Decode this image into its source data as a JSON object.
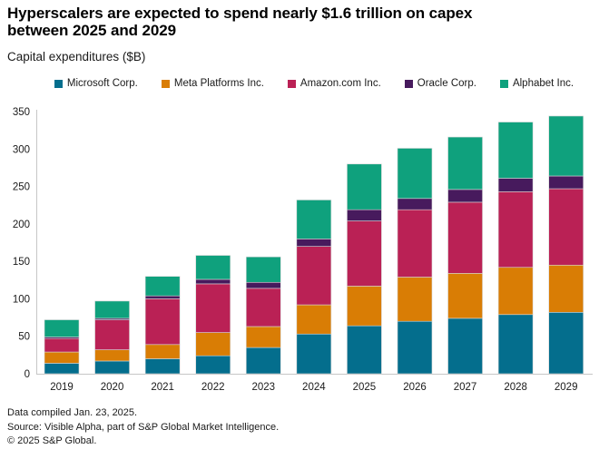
{
  "header": {
    "title": "Hyperscalers are expected to spend nearly $1.6 trillion on capex between 2025 and 2029",
    "title_lines": [
      "Hyperscalers are expected to spend nearly $1.6 trillion on capex",
      "between 2025 and 2029"
    ],
    "subtitle": "Capital expenditures ($B)"
  },
  "chart_data": {
    "type": "bar",
    "stacked": true,
    "title": "Hyperscalers are expected to spend nearly $1.6 trillion on capex between 2025 and 2029",
    "ylabel": "Capital expenditures ($B)",
    "xlabel": "",
    "ylim": [
      0,
      350
    ],
    "yticks": [
      0,
      50,
      100,
      150,
      200,
      250,
      300,
      350
    ],
    "grid": false,
    "legend_position": "top",
    "categories": [
      "2019",
      "2020",
      "2021",
      "2022",
      "2023",
      "2024",
      "2025",
      "2026",
      "2027",
      "2028",
      "2029"
    ],
    "series": [
      {
        "name": "Microsoft Corp.",
        "color": "#046e8d",
        "values": [
          14,
          17,
          20,
          24,
          35,
          53,
          64,
          70,
          74,
          79,
          82
        ]
      },
      {
        "name": "Meta Platforms Inc.",
        "color": "#d97d05",
        "values": [
          15,
          15,
          19,
          31,
          28,
          39,
          53,
          59,
          60,
          63,
          63
        ]
      },
      {
        "name": "Amazon.com Inc.",
        "color": "#ba2155",
        "values": [
          18,
          40,
          61,
          65,
          51,
          78,
          87,
          90,
          95,
          101,
          102
        ]
      },
      {
        "name": "Oracle Corp.",
        "color": "#471a5d",
        "values": [
          2,
          2,
          4,
          6,
          8,
          10,
          15,
          15,
          17,
          18,
          17
        ]
      },
      {
        "name": "Alphabet Inc.",
        "color": "#0fa17d",
        "values": [
          23,
          23,
          26,
          32,
          34,
          52,
          61,
          67,
          70,
          75,
          80
        ]
      }
    ],
    "totals": [
      72,
      97,
      130,
      158,
      156,
      232,
      280,
      301,
      316,
      336,
      344
    ],
    "axis_color": "#c6c6c6",
    "text_color": "#1a1a1a"
  },
  "footer": {
    "compiled": "Data compiled Jan. 23, 2025.",
    "source": "Source: Visible Alpha, part of S&P Global Market Intelligence.",
    "copyright": "© 2025 S&P Global."
  }
}
